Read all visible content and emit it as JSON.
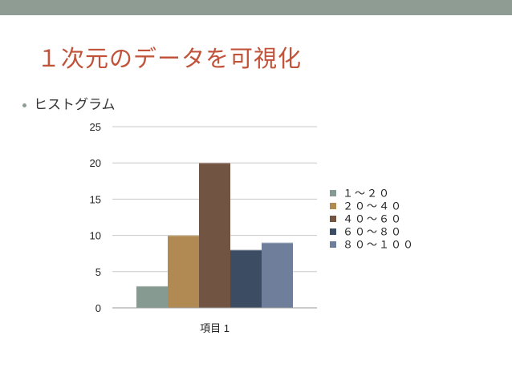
{
  "slide": {
    "title": "１次元のデータを可視化",
    "bullet": "ヒストグラム"
  },
  "chart_data": {
    "type": "bar",
    "categories": [
      "項目 1"
    ],
    "series": [
      {
        "name": "１〜２０",
        "values": [
          3
        ],
        "color": "#869a91"
      },
      {
        "name": "２０〜４０",
        "values": [
          10
        ],
        "color": "#b08a52"
      },
      {
        "name": "４０〜６０",
        "values": [
          20
        ],
        "color": "#725443"
      },
      {
        "name": "６０〜８０",
        "values": [
          8
        ],
        "color": "#3c4d63"
      },
      {
        "name": "８０〜１００",
        "values": [
          9
        ],
        "color": "#6f7f9b"
      }
    ],
    "ylim": [
      0,
      25
    ],
    "yticks": [
      0,
      5,
      10,
      15,
      20,
      25
    ],
    "grid": true,
    "legend": "right"
  }
}
